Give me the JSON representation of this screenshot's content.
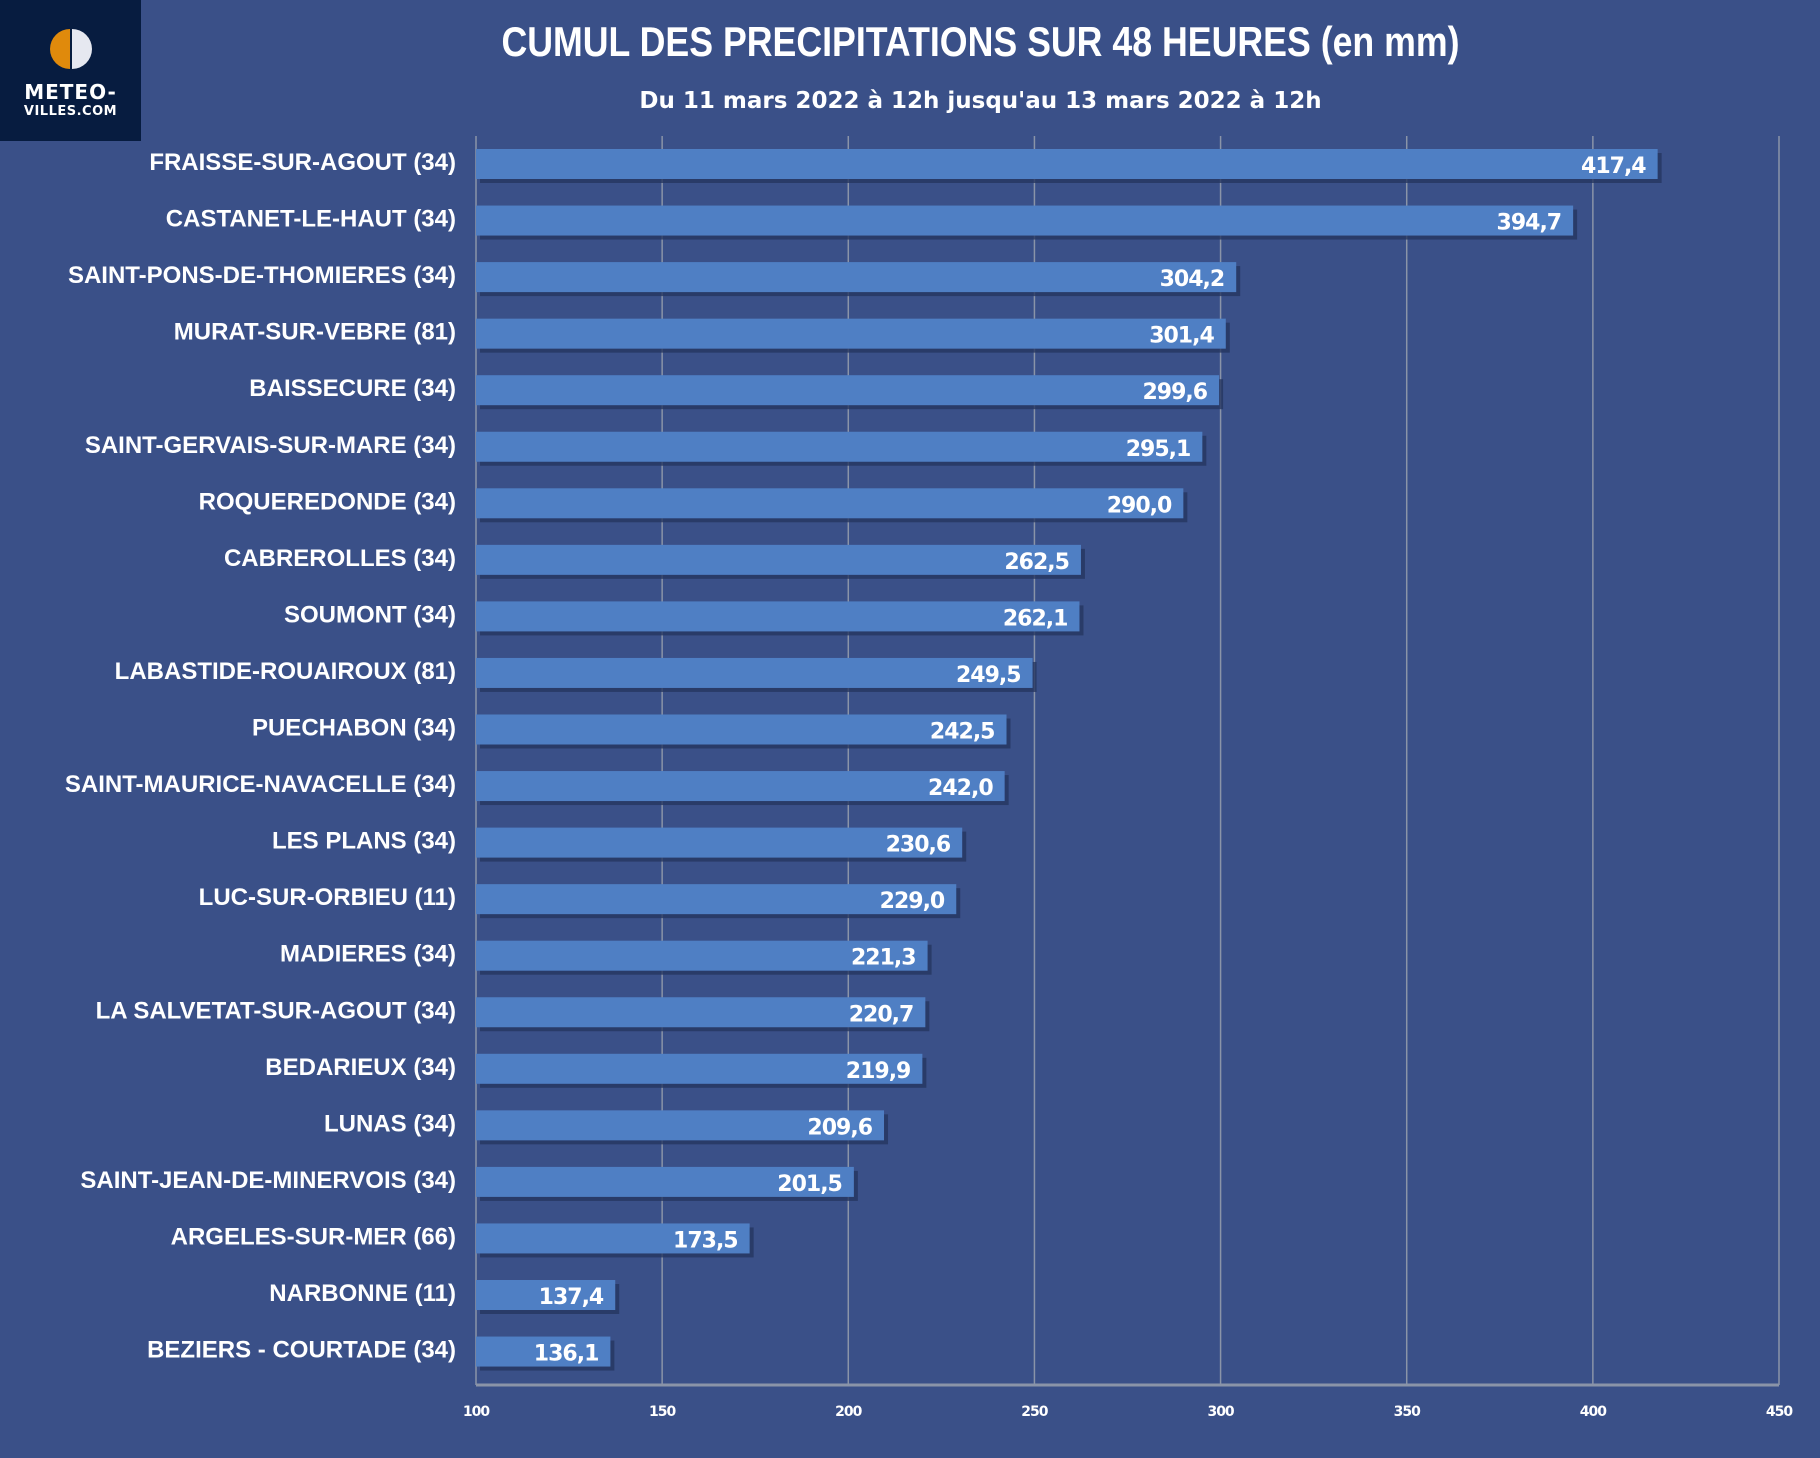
{
  "logo": {
    "line1": "METEO-",
    "line2": "VILLES.COM"
  },
  "chart_data": {
    "type": "bar",
    "orientation": "horizontal",
    "title": "CUMUL DES PRECIPITATIONS SUR 48 HEURES  (en mm)",
    "subtitle": "Du 11 mars 2022 à 12h jusqu'au 13 mars 2022 à 12h",
    "xlim": [
      100,
      450
    ],
    "ticks": [
      100,
      150,
      200,
      250,
      300,
      350,
      400,
      450
    ],
    "grid": true,
    "bar_color": "#4f7fc4",
    "categories": [
      "FRAISSE-SUR-AGOUT (34)",
      "CASTANET-LE-HAUT (34)",
      "SAINT-PONS-DE-THOMIERES (34)",
      "MURAT-SUR-VEBRE (81)",
      "BAISSECURE (34)",
      "SAINT-GERVAIS-SUR-MARE (34)",
      "ROQUEREDONDE (34)",
      "CABREROLLES (34)",
      "SOUMONT (34)",
      "LABASTIDE-ROUAIROUX (81)",
      "PUECHABON (34)",
      "SAINT-MAURICE-NAVACELLE (34)",
      "LES PLANS (34)",
      "LUC-SUR-ORBIEU (11)",
      "MADIERES (34)",
      "LA SALVETAT-SUR-AGOUT (34)",
      "BEDARIEUX (34)",
      "LUNAS (34)",
      "SAINT-JEAN-DE-MINERVOIS (34)",
      "ARGELES-SUR-MER (66)",
      "NARBONNE (11)",
      "BEZIERS - COURTADE (34)"
    ],
    "values": [
      417.4,
      394.7,
      304.2,
      301.4,
      299.6,
      295.1,
      290.0,
      262.5,
      262.1,
      249.5,
      242.5,
      242.0,
      230.6,
      229.0,
      221.3,
      220.7,
      219.9,
      209.6,
      201.5,
      173.5,
      137.4,
      136.1
    ]
  }
}
